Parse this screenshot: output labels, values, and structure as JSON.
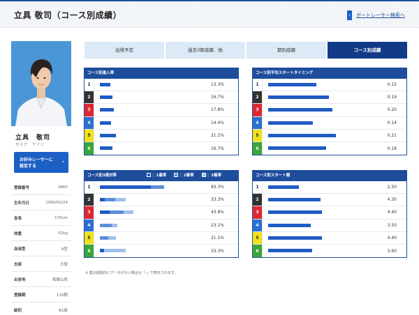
{
  "header": {
    "title": "立具 敬司（コース別成績）",
    "back_label": "ボートレーサー検索へ",
    "back_icon": "chevron-left-icon"
  },
  "profile": {
    "name": "立具　敬司",
    "kana": "タテグ　ケイジ",
    "favorite_label_1": "お好みレーサーに",
    "favorite_label_2": "設定する",
    "rows": [
      {
        "key": "登録番号",
        "value": "4865"
      },
      {
        "key": "生年月日",
        "value": "1990/02/24"
      },
      {
        "key": "身長",
        "value": "170cm"
      },
      {
        "key": "体重",
        "value": "52kg"
      },
      {
        "key": "血液型",
        "value": "A型"
      },
      {
        "key": "支部",
        "value": "大阪"
      },
      {
        "key": "出身地",
        "value": "和歌山県"
      },
      {
        "key": "登録期",
        "value": "116期"
      },
      {
        "key": "級別",
        "value": "B1級"
      }
    ]
  },
  "tabs": [
    {
      "label": "出場予定",
      "active": false
    },
    {
      "label": "過去3節成績、他",
      "active": false
    },
    {
      "label": "期別成績",
      "active": false
    },
    {
      "label": "コース別成績",
      "active": true
    }
  ],
  "colors": {
    "accent": "#1e4d9c",
    "bar": "#1f5bc4",
    "bar_mid": "#5c8fd9",
    "bar_light": "#9ec0ea",
    "course": [
      "#ffffff",
      "#333333",
      "#e0262f",
      "#2d6fd0",
      "#f1e11a",
      "#3aa53b"
    ],
    "course_text": [
      "#222222",
      "#ffffff",
      "#ffffff",
      "#ffffff",
      "#222222",
      "#ffffff"
    ]
  },
  "courses": [
    "1",
    "2",
    "3",
    "4",
    "5",
    "6"
  ],
  "panels": {
    "entry": {
      "title": "コース別進入率",
      "values": [
        "13.3%",
        "16.7%",
        "17.8%",
        "14.4%",
        "21.1%",
        "16.7%"
      ]
    },
    "avg_st": {
      "title": "コース別平均スタートタイミング",
      "values": [
        "0.15",
        "0.19",
        "0.20",
        "0.14",
        "0.21",
        "0.18"
      ]
    },
    "rentai": {
      "title": "コース別3連対率",
      "legend": [
        "：1着率",
        "：2着率",
        "：3着率"
      ],
      "values": [
        "83.3%",
        "33.3%",
        "43.8%",
        "23.1%",
        "21.1%",
        "33.3%"
      ]
    },
    "st_rank": {
      "title": "コース別スタート順",
      "values": [
        "2.50",
        "4.30",
        "4.40",
        "3.50",
        "4.40",
        "3.60"
      ]
    }
  },
  "chart_data": [
    {
      "type": "bar",
      "title": "コース別進入率",
      "categories": [
        "1",
        "2",
        "3",
        "4",
        "5",
        "6"
      ],
      "values": [
        13.3,
        16.7,
        17.8,
        14.4,
        21.1,
        16.7
      ]
    },
    {
      "type": "bar",
      "title": "コース別平均スタートタイミング",
      "categories": [
        "1",
        "2",
        "3",
        "4",
        "5",
        "6"
      ],
      "values": [
        0.15,
        0.19,
        0.2,
        0.14,
        0.21,
        0.18
      ]
    },
    {
      "type": "bar",
      "title": "コース別3連対率",
      "categories": [
        "1",
        "2",
        "3",
        "4",
        "5",
        "6"
      ],
      "series": [
        {
          "name": "1着率",
          "values": [
            66.7,
            6.7,
            12.5,
            0,
            0,
            5.6
          ]
        },
        {
          "name": "2着率",
          "values": [
            16.6,
            13.3,
            18.8,
            15.4,
            10.5,
            0
          ]
        },
        {
          "name": "3着率",
          "values": [
            0,
            13.3,
            12.5,
            7.7,
            10.6,
            27.7
          ]
        }
      ],
      "totals": [
        83.3,
        33.3,
        43.8,
        23.1,
        21.1,
        33.3
      ]
    },
    {
      "type": "bar",
      "title": "コース別スタート順",
      "categories": [
        "1",
        "2",
        "3",
        "4",
        "5",
        "6"
      ],
      "values": [
        2.5,
        4.3,
        4.4,
        3.5,
        4.4,
        3.6
      ]
    }
  ],
  "note": "※ 集計期間内にデータがない場合は「-」で表示されます。"
}
